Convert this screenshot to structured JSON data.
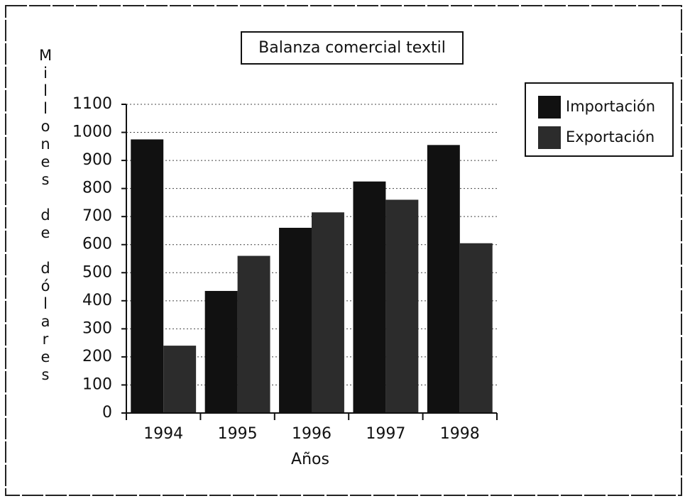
{
  "chart_data": {
    "type": "bar",
    "title": "Balanza comercial textil",
    "x_label": "Años",
    "y_label": "Millones de dólares",
    "categories": [
      "1994",
      "1995",
      "1996",
      "1997",
      "1998"
    ],
    "series": [
      {
        "name": "Importación",
        "color": "#111111",
        "values": [
          975,
          435,
          660,
          825,
          955
        ]
      },
      {
        "name": "Exportación",
        "color": "#2c2c2c",
        "values": [
          240,
          560,
          715,
          760,
          605
        ]
      }
    ],
    "ylim": [
      0,
      1100
    ],
    "yticks": [
      0,
      100,
      200,
      300,
      400,
      500,
      600,
      700,
      800,
      900,
      1000,
      1100
    ],
    "grid": true,
    "legend": "right"
  }
}
